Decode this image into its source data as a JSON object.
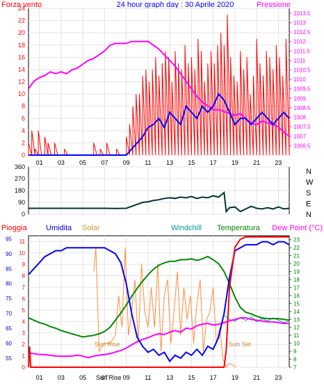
{
  "header": {
    "left_label": "Forza vento",
    "title": "24 hour graph day : 30 Aprile 2020",
    "right_label": "Pressione"
  },
  "colors": {
    "wind": "#ff0000",
    "wind_avg": "#0000ff",
    "pressure": "#ff00ff",
    "direction": "#003333",
    "rain": "#ff0000",
    "humidity": "#0000ff",
    "solar": "#ff8c3a",
    "windchill": "#009999",
    "temperature": "#008800",
    "dewpoint": "#ff00ff",
    "axis_green": "#008000"
  },
  "chart_data": [
    {
      "type": "line",
      "name": "wind-pressure",
      "title": "24 hour graph day : 30 Aprile 2020",
      "ylabel": "Forza vento",
      "y2label": "Pressione",
      "ylim": [
        0,
        24
      ],
      "y_ticks": [
        "0",
        "2",
        "4",
        "6",
        "8",
        "10",
        "12",
        "14",
        "16",
        "18",
        "20",
        "22",
        "24"
      ],
      "y2lim": [
        1006.0,
        1013.75
      ],
      "y2_ticks": [
        "1006.5",
        "1007",
        "1007.5",
        "1008",
        "1008.5",
        "1009",
        "1009.5",
        "1010",
        "1010.5",
        "1011",
        "1011.5",
        "1012",
        "1012.5",
        "1013",
        "1013.5"
      ],
      "xlim": [
        0,
        24
      ],
      "x_ticks": [
        "01",
        "03",
        "05",
        "07",
        "09",
        "11",
        "13",
        "15",
        "17",
        "19",
        "21",
        "23"
      ],
      "series": [
        {
          "key": "gust",
          "x": [
            0,
            0.3,
            0.6,
            0.9,
            1.2,
            1.5,
            1.8,
            2.1,
            2.4,
            2.7,
            3.0,
            3.3,
            3.6,
            3.9,
            4.2,
            4.5,
            4.8,
            5.1,
            5.4,
            5.7,
            6.0,
            6.3,
            6.6,
            6.9,
            7.2,
            7.5,
            7.8,
            8.1,
            8.4,
            8.7,
            9.0,
            9.3,
            9.6,
            9.9,
            10.2,
            10.5,
            10.8,
            11.1,
            11.4,
            11.7,
            12.0,
            12.3,
            12.6,
            12.9,
            13.2,
            13.5,
            13.8,
            14.1,
            14.4,
            14.7,
            15.0,
            15.3,
            15.6,
            15.9,
            16.2,
            16.5,
            16.8,
            17.1,
            17.4,
            17.7,
            18.0,
            18.3,
            18.6,
            18.9,
            19.2,
            19.5,
            19.8,
            20.1,
            20.4,
            20.7,
            21.0,
            21.3,
            21.6,
            21.9,
            22.2,
            22.5,
            22.8,
            23.1,
            23.4,
            23.7,
            24.0
          ],
          "values": [
            2,
            4,
            1,
            4,
            0,
            3,
            2,
            0,
            2,
            0,
            0,
            1,
            0,
            0,
            0,
            0,
            0,
            0,
            0,
            0,
            2,
            0,
            1,
            0,
            2,
            0,
            0,
            1,
            0,
            0,
            3,
            5,
            8,
            10,
            10,
            13,
            14,
            12,
            14,
            16,
            13,
            15,
            17,
            16,
            12,
            17,
            15,
            14,
            18,
            15,
            16,
            14,
            19,
            17,
            12,
            15,
            17,
            15,
            18,
            20,
            18,
            23,
            16,
            13,
            12,
            17,
            14,
            16,
            10,
            13,
            19,
            15,
            13,
            17,
            16,
            14,
            18,
            16,
            13,
            19,
            12
          ]
        },
        {
          "key": "average",
          "x": [
            0,
            0.5,
            1,
            1.5,
            2,
            2.5,
            3,
            3.5,
            4,
            4.5,
            5,
            5.5,
            6,
            6.5,
            7,
            7.5,
            8,
            8.5,
            9,
            9.5,
            10,
            10.5,
            11,
            11.5,
            12,
            12.5,
            13,
            13.5,
            14,
            14.5,
            15,
            15.5,
            16,
            16.5,
            17,
            17.5,
            18,
            18.5,
            19,
            19.5,
            20,
            20.5,
            21,
            21.5,
            22,
            22.5,
            23,
            23.5,
            24
          ],
          "values": [
            0,
            0,
            0,
            0,
            0,
            0,
            0,
            0,
            0,
            0,
            0,
            0,
            0,
            0,
            0,
            0,
            0,
            0,
            0,
            1,
            2,
            3,
            4.5,
            5,
            6,
            4.5,
            7,
            6,
            5,
            8,
            7,
            6,
            8,
            7,
            8,
            10,
            9,
            7,
            5,
            6,
            6,
            5,
            6,
            7,
            6,
            5,
            6,
            7,
            6
          ]
        },
        {
          "key": "pressure",
          "x": [
            0,
            0.5,
            1,
            1.5,
            2,
            2.5,
            3,
            3.5,
            4,
            4.5,
            5,
            5.5,
            6,
            6.5,
            7,
            7.5,
            8,
            8.5,
            9,
            9.5,
            10,
            10.5,
            11,
            11.5,
            12,
            12.5,
            13,
            13.5,
            14,
            14.5,
            15,
            15.5,
            16,
            16.5,
            17,
            17.5,
            18,
            18.5,
            19,
            19.5,
            20,
            20.5,
            21,
            21.5,
            22,
            22.5,
            23,
            23.5,
            24
          ],
          "values": [
            1009.5,
            1009.9,
            1010.1,
            1010.2,
            1010.4,
            1010.3,
            1010.4,
            1010.3,
            1010.5,
            1010.6,
            1010.8,
            1011.0,
            1011.1,
            1011.3,
            1011.5,
            1011.8,
            1011.9,
            1011.9,
            1011.9,
            1012.0,
            1012.0,
            1012.0,
            1012.0,
            1011.8,
            1011.6,
            1011.3,
            1011.0,
            1010.7,
            1010.3,
            1009.9,
            1009.5,
            1009.1,
            1008.8,
            1008.6,
            1008.4,
            1008.4,
            1008.3,
            1008.2,
            1008.1,
            1008.2,
            1007.9,
            1007.7,
            1007.6,
            1007.8,
            1007.7,
            1007.6,
            1007.5,
            1007.2,
            1007.0
          ]
        }
      ]
    },
    {
      "type": "line",
      "name": "wind-direction",
      "ylim": [
        0,
        360
      ],
      "y_ticks": [
        "0",
        "90",
        "180",
        "270",
        "360"
      ],
      "dir_labels": [
        "N",
        "W",
        "S",
        "E",
        "N"
      ],
      "x": [
        0,
        1,
        2,
        3,
        4,
        5,
        6,
        7,
        8,
        9,
        10,
        10.5,
        11,
        11.5,
        12,
        12.5,
        13,
        13.5,
        14,
        14.5,
        15,
        15.5,
        16,
        16.5,
        17,
        17.5,
        18,
        18.2,
        18.5,
        19,
        19.5,
        20,
        20.5,
        21,
        21.5,
        22,
        22.5,
        23,
        23.5,
        24
      ],
      "values": [
        45,
        45,
        45,
        45,
        45,
        45,
        45,
        45,
        44,
        45,
        75,
        90,
        95,
        105,
        110,
        120,
        125,
        120,
        130,
        125,
        135,
        120,
        130,
        125,
        140,
        130,
        165,
        20,
        50,
        55,
        20,
        40,
        60,
        45,
        40,
        50,
        40,
        55,
        40,
        45
      ]
    },
    {
      "type": "line",
      "name": "weather",
      "y_ticks_rain": [
        "0",
        "1",
        "2",
        "3",
        "4",
        "5",
        "6",
        "7",
        "8",
        "9",
        "10",
        "11"
      ],
      "rain_ylim": [
        0,
        11.5
      ],
      "y_ticks_hum": [
        "55",
        "60",
        "65",
        "70",
        "75",
        "80",
        "85",
        "90",
        "95"
      ],
      "hum_ylim": [
        52,
        96
      ],
      "y_ticks_temp": [
        "7",
        "8",
        "9",
        "10",
        "11",
        "12",
        "13",
        "14",
        "15",
        "16",
        "17",
        "18",
        "19",
        "20",
        "21",
        "22",
        "23"
      ],
      "temp_ylim": [
        7,
        23.5
      ],
      "x_ticks": [
        "01",
        "03",
        "05",
        "07",
        "09",
        "11",
        "13",
        "15",
        "17",
        "19",
        "21",
        "23"
      ],
      "annotations": [
        "Sun Rise",
        "Sun Set"
      ],
      "x_sunrise_label": "Sun Rise",
      "legend": {
        "rain": "Pioggia",
        "humidity": "Umidita",
        "solar": "Solar",
        "windchill": "Windchill",
        "temperature": "Temperatura",
        "dewpoint": "Dew Point (°C)"
      },
      "series": [
        {
          "key": "rain",
          "x": [
            0,
            0.1,
            0.2,
            1,
            5,
            10,
            15,
            18.0,
            18.2,
            18.5,
            19,
            19.5,
            20,
            21,
            22,
            23,
            24
          ],
          "values": [
            0,
            1.8,
            0,
            0,
            0,
            0,
            0,
            0,
            1.5,
            7,
            10.5,
            11.2,
            11.4,
            11.4,
            11.4,
            11.4,
            11.4
          ]
        },
        {
          "key": "humidity",
          "x": [
            0,
            0.5,
            1,
            1.5,
            2,
            2.5,
            3,
            3.5,
            4,
            4.5,
            5,
            5.5,
            6,
            6.5,
            7,
            7.5,
            8,
            8.5,
            9,
            9.5,
            10,
            10.5,
            11,
            11.5,
            12,
            12.5,
            13,
            13.5,
            14,
            14.5,
            15,
            15.5,
            16,
            16.5,
            17,
            17.5,
            18,
            18.5,
            19,
            19.5,
            20,
            20.5,
            21,
            21.5,
            22,
            22.5,
            23,
            23.5,
            24
          ],
          "values": [
            83,
            85,
            87,
            89,
            90,
            91,
            91,
            92,
            92,
            92,
            92,
            92,
            92,
            92,
            92,
            91,
            90,
            87,
            80,
            70,
            62,
            59,
            57,
            58,
            56,
            57,
            54,
            56,
            55,
            57,
            56,
            58,
            56,
            59,
            58,
            62,
            70,
            82,
            91,
            92,
            93,
            93,
            93,
            94,
            94,
            93,
            94,
            94,
            93
          ]
        },
        {
          "key": "solar",
          "x": [
            6.0,
            6.2,
            6.5,
            7,
            7.5,
            8,
            8.3,
            8.6,
            8.9,
            9.2,
            9.5,
            9.8,
            10.1,
            10.4,
            10.7,
            11,
            11.3,
            11.6,
            11.9,
            12.2,
            12.5,
            12.8,
            13.1,
            13.4,
            13.7,
            14,
            14.3,
            14.6,
            14.9,
            15.2,
            15.5,
            15.8,
            16.1,
            16.4,
            16.7,
            17,
            17.3,
            17.6,
            17.9,
            18.2,
            18.5,
            18.8,
            19.1
          ],
          "values": [
            19,
            22,
            9,
            10,
            10,
            11,
            16,
            12,
            22,
            11,
            14,
            18,
            10,
            20,
            14,
            12,
            17,
            12,
            20,
            9,
            16,
            18,
            10,
            14,
            19,
            11,
            17,
            13,
            16,
            10,
            15,
            18,
            9,
            13,
            14,
            17,
            10,
            12,
            8,
            7,
            7.5,
            7.3,
            7
          ]
        },
        {
          "key": "windchill",
          "x": [
            18,
            18.5,
            19,
            19.5,
            20,
            20.5,
            21,
            21.5,
            22,
            22.5,
            23,
            23.5,
            24
          ],
          "values": [
            13.5,
            13.0,
            12.8,
            13.2,
            12.9,
            13.3,
            12.7,
            13.1,
            12.8,
            13.2,
            12.9,
            12.6,
            12.8
          ]
        },
        {
          "key": "temperature",
          "x": [
            0,
            0.5,
            1,
            1.5,
            2,
            2.5,
            3,
            3.5,
            4,
            4.5,
            5,
            5.5,
            6,
            6.5,
            7,
            7.5,
            8,
            8.5,
            9,
            9.5,
            10,
            10.5,
            11,
            11.5,
            12,
            12.5,
            13,
            13.5,
            14,
            14.5,
            15,
            15.5,
            16,
            16.5,
            17,
            17.5,
            18,
            18.5,
            19,
            19.5,
            20,
            20.5,
            21,
            21.5,
            22,
            22.5,
            23,
            23.5,
            24
          ],
          "values": [
            13.2,
            12.9,
            12.6,
            12.4,
            12.1,
            11.9,
            11.6,
            11.4,
            11.2,
            11.0,
            10.8,
            10.9,
            11.0,
            11.2,
            11.5,
            12.0,
            12.9,
            13.8,
            14.8,
            15.9,
            16.9,
            17.8,
            18.6,
            19.3,
            19.8,
            20.1,
            20.3,
            20.3,
            20.5,
            20.5,
            20.6,
            20.4,
            20.6,
            20.9,
            20.5,
            20.0,
            19.0,
            17.5,
            15.8,
            14.5,
            13.9,
            13.7,
            13.4,
            13.2,
            13.1,
            13.1,
            13.1,
            13.0,
            12.9
          ]
        },
        {
          "key": "dewpoint",
          "x": [
            0,
            0.5,
            1,
            1.5,
            2,
            2.5,
            3,
            3.5,
            4,
            4.5,
            5,
            5.5,
            6,
            6.5,
            7,
            7.5,
            8,
            8.5,
            9,
            9.5,
            10,
            10.5,
            11,
            11.5,
            12,
            12.5,
            13,
            13.5,
            14,
            14.5,
            15,
            15.5,
            16,
            16.5,
            17,
            17.5,
            18,
            18.5,
            19,
            19.5,
            20,
            20.5,
            21,
            21.5,
            22,
            22.5,
            23,
            23.5,
            24
          ],
          "values": [
            8.8,
            8.7,
            8.6,
            8.6,
            8.5,
            8.4,
            8.4,
            8.4,
            8.4,
            8.5,
            8.4,
            8.2,
            8.4,
            8.5,
            8.6,
            8.7,
            8.9,
            9.1,
            9.4,
            9.8,
            10.2,
            10.5,
            10.7,
            11.0,
            11.2,
            11.1,
            11.4,
            11.6,
            11.4,
            11.9,
            11.8,
            12.2,
            12.4,
            12.5,
            12.3,
            12.4,
            12.6,
            12.8,
            13.0,
            13.2,
            13.2,
            13.0,
            12.9,
            12.8,
            12.7,
            12.7,
            12.6,
            12.5,
            12.5
          ]
        }
      ]
    }
  ]
}
